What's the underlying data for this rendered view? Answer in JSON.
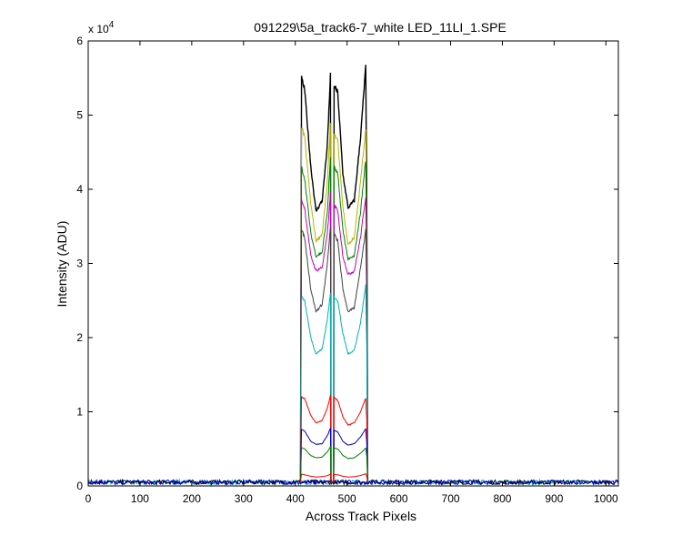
{
  "chart_data": {
    "type": "line",
    "title": "091229\\5a_track6-7_white LED_11LI_1.SPE",
    "xlabel": "Across Track Pixels",
    "ylabel": "Intensity (ADU)",
    "exponent_label": {
      "base": "x 10",
      "power": "4"
    },
    "xlim": [
      0,
      1024
    ],
    "ylim": [
      0,
      60000
    ],
    "xticks": [
      0,
      100,
      200,
      300,
      400,
      500,
      600,
      700,
      800,
      900,
      1000
    ],
    "yticks": [
      0,
      10000,
      20000,
      30000,
      40000,
      50000,
      60000
    ],
    "ytick_labels": [
      "0",
      "1",
      "2",
      "3",
      "4",
      "5",
      "6"
    ],
    "grid": false,
    "legend": "none",
    "background_level": 500,
    "track_segments": [
      [
        412,
        468
      ],
      [
        475,
        538
      ]
    ],
    "series": [
      {
        "color": "#000000",
        "x": [
          412,
          418,
          430,
          440,
          452,
          462,
          468,
          475,
          482,
          492,
          502,
          514,
          526,
          536,
          538
        ],
        "y": [
          55000,
          53500,
          43000,
          37000,
          38500,
          46000,
          55500,
          54000,
          53000,
          42000,
          37500,
          38500,
          47000,
          56500,
          40000
        ]
      },
      {
        "color": "#b5b500",
        "x": [
          412,
          418,
          430,
          440,
          452,
          462,
          468,
          475,
          482,
          492,
          502,
          514,
          526,
          536,
          538
        ],
        "y": [
          48500,
          47000,
          38000,
          33000,
          34000,
          41000,
          49000,
          47500,
          46500,
          37500,
          32500,
          33500,
          41000,
          48000,
          35000
        ]
      },
      {
        "color": "#008000",
        "x": [
          412,
          418,
          430,
          440,
          452,
          462,
          468,
          475,
          482,
          492,
          502,
          514,
          526,
          536,
          538
        ],
        "y": [
          43000,
          41500,
          34000,
          31000,
          31500,
          37000,
          44500,
          43000,
          42000,
          34500,
          30500,
          31000,
          37000,
          44000,
          32000
        ]
      },
      {
        "color": "#bf00bf",
        "x": [
          412,
          418,
          430,
          440,
          452,
          462,
          468,
          475,
          482,
          492,
          502,
          514,
          526,
          536,
          538
        ],
        "y": [
          38500,
          37500,
          31000,
          29000,
          29500,
          34000,
          39500,
          38000,
          37000,
          31000,
          28500,
          29000,
          33500,
          39000,
          29000
        ]
      },
      {
        "color": "#404040",
        "x": [
          412,
          418,
          430,
          440,
          452,
          462,
          468,
          475,
          482,
          492,
          502,
          514,
          526,
          536,
          538
        ],
        "y": [
          34500,
          33500,
          26500,
          23500,
          24500,
          30000,
          35000,
          34000,
          33000,
          26500,
          23500,
          24000,
          29500,
          34500,
          26000
        ]
      },
      {
        "color": "#00b0b0",
        "x": [
          412,
          418,
          430,
          440,
          452,
          462,
          468,
          475,
          482,
          492,
          502,
          514,
          526,
          536,
          538
        ],
        "y": [
          25500,
          25000,
          20000,
          17800,
          18500,
          22500,
          26000,
          25500,
          25000,
          20500,
          17800,
          18300,
          22000,
          27000,
          19000
        ]
      },
      {
        "color": "#ff0000",
        "x": [
          412,
          418,
          430,
          440,
          452,
          462,
          468,
          475,
          482,
          492,
          502,
          514,
          526,
          536,
          538
        ],
        "y": [
          12000,
          11800,
          9500,
          8500,
          8800,
          10500,
          12200,
          12000,
          11500,
          9300,
          8200,
          8500,
          10000,
          11800,
          9000
        ]
      },
      {
        "color": "#0000bf",
        "x": [
          412,
          418,
          430,
          440,
          452,
          462,
          468,
          475,
          482,
          492,
          502,
          514,
          526,
          536,
          538
        ],
        "y": [
          7600,
          7400,
          6000,
          5600,
          5700,
          6800,
          7800,
          7500,
          7300,
          6000,
          5500,
          5700,
          6600,
          7700,
          5900
        ]
      },
      {
        "color": "#008000",
        "x": [
          412,
          418,
          430,
          440,
          452,
          462,
          468,
          475,
          482,
          492,
          502,
          514,
          526,
          536,
          538
        ],
        "y": [
          5200,
          5000,
          4100,
          3800,
          3900,
          4600,
          5300,
          5100,
          5000,
          4100,
          3700,
          3800,
          4400,
          5100,
          4000
        ]
      },
      {
        "color": "#ff0000",
        "x": [
          412,
          418,
          430,
          440,
          452,
          462,
          468,
          475,
          482,
          492,
          502,
          514,
          526,
          536,
          538
        ],
        "y": [
          1600,
          1500,
          1300,
          1200,
          1250,
          1400,
          1600,
          1550,
          1500,
          1300,
          1200,
          1250,
          1400,
          1650,
          1300
        ]
      }
    ]
  }
}
